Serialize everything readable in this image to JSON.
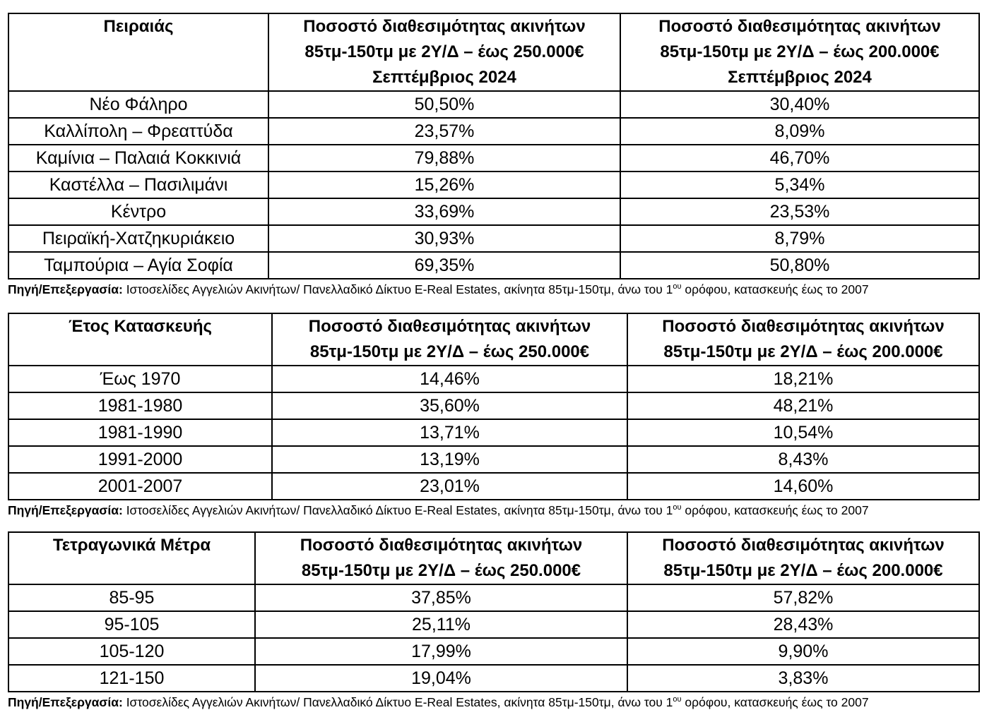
{
  "page": {
    "background": "#ffffff",
    "text_color": "#000000",
    "border_color": "#000000"
  },
  "source_note": {
    "label": "Πηγή/Επεξεργασία:",
    "text_before_sup": " Ιστοσελίδες Αγγελιών Ακινήτων/ Πανελλαδικό Δίκτυο E-Real Estates, ακίνητα 85τμ-150τμ,  άνω του 1",
    "sup": "ου",
    "text_after_sup": " ορόφου, κατασκευής έως το 2007"
  },
  "tables": [
    {
      "title": "Πειραιάς",
      "col2_header": [
        "Ποσοστό διαθεσιμότητας ακινήτων",
        "85τμ-150τμ με 2Υ/Δ – έως 250.000€",
        "Σεπτέμβριος 2024"
      ],
      "col3_header": [
        "Ποσοστό διαθεσιμότητας ακινήτων",
        "85τμ-150τμ με 2Υ/Δ – έως 200.000€",
        "Σεπτέμβριος 2024"
      ],
      "rows": [
        {
          "label": "Νέο Φάληρο",
          "pct_250k": "50,50%",
          "pct_200k": "30,40%"
        },
        {
          "label": "Καλλίπολη – Φρεαττύδα",
          "pct_250k": "23,57%",
          "pct_200k": "8,09%"
        },
        {
          "label": "Καμίνια – Παλαιά Κοκκινιά",
          "pct_250k": "79,88%",
          "pct_200k": "46,70%"
        },
        {
          "label": "Καστέλλα – Πασιλιμάνι",
          "pct_250k": "15,26%",
          "pct_200k": "5,34%"
        },
        {
          "label": "Κέντρο",
          "pct_250k": "33,69%",
          "pct_200k": "23,53%"
        },
        {
          "label": "Πειραϊκή-Χατζηκυριάκειο",
          "pct_250k": "30,93%",
          "pct_200k": "8,79%"
        },
        {
          "label": "Ταμπούρια – Αγία Σοφία",
          "pct_250k": "69,35%",
          "pct_200k": "50,80%"
        }
      ]
    },
    {
      "title": "Έτος Κατασκευής",
      "col2_header": [
        "Ποσοστό διαθεσιμότητας ακινήτων",
        "85τμ-150τμ με 2Υ/Δ – έως 250.000€"
      ],
      "col3_header": [
        "Ποσοστό διαθεσιμότητας ακινήτων",
        "85τμ-150τμ με 2Υ/Δ – έως 200.000€"
      ],
      "rows": [
        {
          "label": "Έως 1970",
          "pct_250k": "14,46%",
          "pct_200k": "18,21%"
        },
        {
          "label": "1981-1980",
          "pct_250k": "35,60%",
          "pct_200k": "48,21%"
        },
        {
          "label": "1981-1990",
          "pct_250k": "13,71%",
          "pct_200k": "10,54%"
        },
        {
          "label": "1991-2000",
          "pct_250k": "13,19%",
          "pct_200k": "8,43%"
        },
        {
          "label": "2001-2007",
          "pct_250k": "23,01%",
          "pct_200k": "14,60%"
        }
      ]
    },
    {
      "title": "Τετραγωνικά Μέτρα",
      "col2_header": [
        "Ποσοστό διαθεσιμότητας ακινήτων",
        "85τμ-150τμ με 2Υ/Δ – έως 250.000€"
      ],
      "col3_header": [
        "Ποσοστό διαθεσιμότητας ακινήτων",
        "85τμ-150τμ με 2Υ/Δ – έως 200.000€"
      ],
      "rows": [
        {
          "label": "85-95",
          "pct_250k": "37,85%",
          "pct_200k": "57,82%"
        },
        {
          "label": "95-105",
          "pct_250k": "25,11%",
          "pct_200k": "28,43%"
        },
        {
          "label": "105-120",
          "pct_250k": "17,99%",
          "pct_200k": "9,90%"
        },
        {
          "label": "121-150",
          "pct_250k": "19,04%",
          "pct_200k": "3,83%"
        }
      ]
    }
  ]
}
